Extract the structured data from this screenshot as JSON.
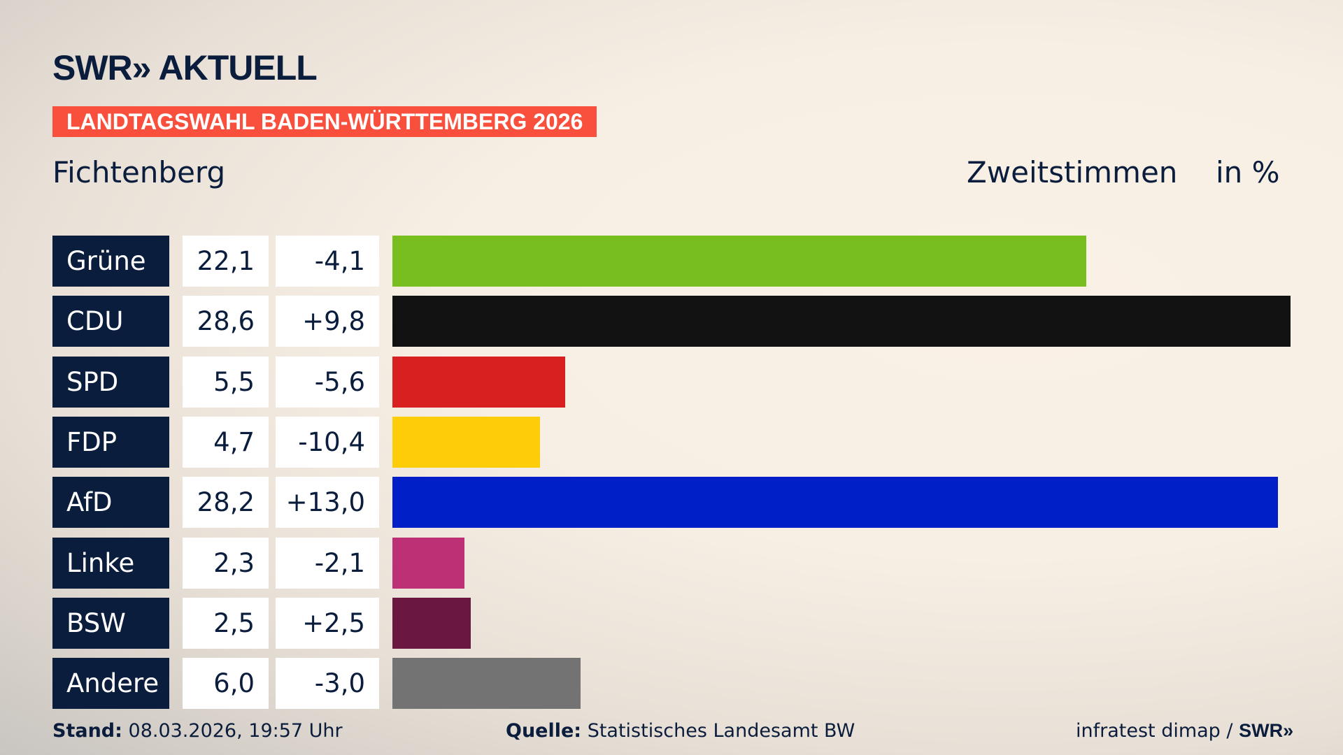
{
  "header": {
    "logo": "SWR» AKTUELL",
    "banner": "LANDTAGSWAHL BADEN-WÜRTTEMBERG 2026",
    "region": "Fichtenberg",
    "metric": "Zweitstimmen",
    "unit": "in %"
  },
  "chart_data": {
    "type": "bar",
    "orientation": "horizontal",
    "categories": [
      "Grüne",
      "CDU",
      "SPD",
      "FDP",
      "AfD",
      "Linke",
      "BSW",
      "Andere"
    ],
    "values": [
      22.1,
      28.6,
      5.5,
      4.7,
      28.2,
      2.3,
      2.5,
      6.0
    ],
    "value_labels": [
      "22,1",
      "28,6",
      "5,5",
      "4,7",
      "28,2",
      "2,3",
      "2,5",
      "6,0"
    ],
    "change_labels": [
      "-4,1",
      "+9,8",
      "-5,6",
      "-10,4",
      "+13,0",
      "-2,1",
      "+2,5",
      "-3,0"
    ],
    "changes": [
      -4.1,
      9.8,
      -5.6,
      -10.4,
      13.0,
      -2.1,
      2.5,
      -3.0
    ],
    "colors": [
      "#78be1e",
      "#121212",
      "#d7201f",
      "#fecd0a",
      "#001fc7",
      "#be3075",
      "#6a1841",
      "#737373"
    ],
    "ylabel": "Zweitstimmen",
    "unit": "in %"
  },
  "footer": {
    "stand_label": "Stand:",
    "stand_value": "08.03.2026, 19:57 Uhr",
    "quelle_label": "Quelle:",
    "quelle_value": "Statistisches Landesamt BW",
    "credit": "infratest dimap /",
    "credit_logo": "SWR»"
  }
}
